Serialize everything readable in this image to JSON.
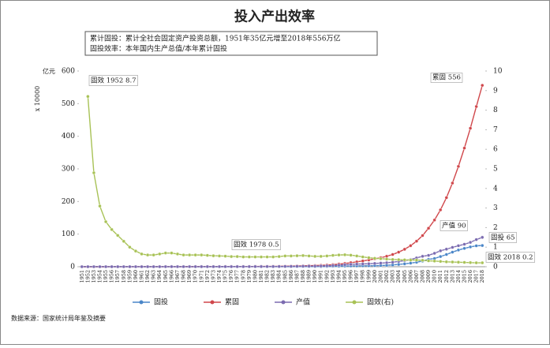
{
  "chart_data": {
    "type": "line",
    "title": "投入产出效率",
    "notes": [
      "累计固投：累计全社会固定资产投资总额，1951年35亿元增至2018年556万亿",
      "固投效率：本年国内生产总值/本年累计固投"
    ],
    "y_axis_label": "亿元",
    "y_axis_multiplier": "x 10000",
    "source": "数据来源：国家统计局年鉴及摘要",
    "annotations": [
      "固效 1952 8.7",
      "累固 556",
      "产值 90",
      "固投 65",
      "固效 2018 0.2",
      "固效 1978 0.5"
    ],
    "ylim": [
      0,
      600
    ],
    "yticks": [
      0,
      100,
      200,
      300,
      400,
      500,
      600
    ],
    "y2lim": [
      0,
      10
    ],
    "y2ticks": [
      0,
      1,
      2,
      3,
      4,
      5,
      6,
      7,
      8,
      9,
      10
    ],
    "grid": false,
    "legend": "bottom",
    "categories": [
      "1951",
      "1952",
      "1953",
      "1954",
      "1955",
      "1956",
      "1957",
      "1958",
      "1959",
      "1960",
      "1961",
      "1962",
      "1963",
      "1964",
      "1965",
      "1966",
      "1967",
      "1968",
      "1969",
      "1970",
      "1971",
      "1972",
      "1973",
      "1974",
      "1975",
      "1976",
      "1977",
      "1978",
      "1979",
      "1980",
      "1981",
      "1982",
      "1983",
      "1984",
      "1985",
      "1986",
      "1987",
      "1988",
      "1989",
      "1990",
      "1991",
      "1992",
      "1993",
      "1994",
      "1995",
      "1996",
      "1997",
      "1998",
      "1999",
      "2000",
      "2001",
      "2002",
      "2003",
      "2004",
      "2005",
      "2006",
      "2007",
      "2008",
      "2009",
      "2010",
      "2011",
      "2012",
      "2013",
      "2014",
      "2015",
      "2016",
      "2017",
      "2018"
    ],
    "series": [
      {
        "name": "固投",
        "color": "#4a86c8",
        "values": [
          0.0,
          0.0,
          0.01,
          0.01,
          0.01,
          0.01,
          0.01,
          0.03,
          0.03,
          0.04,
          0.01,
          0.01,
          0.01,
          0.02,
          0.02,
          0.02,
          0.02,
          0.02,
          0.02,
          0.03,
          0.03,
          0.03,
          0.03,
          0.03,
          0.03,
          0.04,
          0.04,
          0.04,
          0.07,
          0.09,
          0.1,
          0.12,
          0.14,
          0.18,
          0.25,
          0.31,
          0.38,
          0.48,
          0.44,
          0.45,
          0.56,
          0.81,
          1.31,
          1.71,
          2.0,
          2.3,
          2.49,
          2.84,
          2.99,
          3.29,
          3.72,
          4.35,
          5.56,
          7.05,
          8.88,
          11.0,
          13.73,
          17.28,
          22.46,
          25.17,
          31.15,
          37.47,
          44.63,
          51.2,
          56.2,
          60.65,
          64.12,
          65
        ]
      },
      {
        "name": "累固",
        "color": "#d0474b",
        "values": [
          0.0,
          0.0,
          0.01,
          0.02,
          0.03,
          0.04,
          0.05,
          0.08,
          0.11,
          0.15,
          0.16,
          0.17,
          0.18,
          0.2,
          0.22,
          0.24,
          0.26,
          0.28,
          0.3,
          0.33,
          0.36,
          0.39,
          0.42,
          0.45,
          0.48,
          0.52,
          0.56,
          0.6,
          0.72,
          0.81,
          0.91,
          1.03,
          1.17,
          1.35,
          1.6,
          1.91,
          2.29,
          2.77,
          3.21,
          3.66,
          4.22,
          5.03,
          6.34,
          8.05,
          10.05,
          12.35,
          14.84,
          17.68,
          20.67,
          23.96,
          27.68,
          32.03,
          37.59,
          44.64,
          53.52,
          64.52,
          78.25,
          95.53,
          117.99,
          143.16,
          174.31,
          211.78,
          256.41,
          307.61,
          363.81,
          424.46,
          491,
          556
        ]
      },
      {
        "name": "产值",
        "color": "#7b6bb0",
        "values": [
          0.05,
          0.07,
          0.08,
          0.09,
          0.09,
          0.1,
          0.11,
          0.13,
          0.14,
          0.15,
          0.12,
          0.11,
          0.12,
          0.14,
          0.17,
          0.19,
          0.18,
          0.17,
          0.19,
          0.23,
          0.24,
          0.25,
          0.27,
          0.28,
          0.3,
          0.29,
          0.32,
          0.37,
          0.41,
          0.46,
          0.49,
          0.54,
          0.6,
          0.72,
          0.9,
          1.03,
          1.21,
          1.51,
          1.71,
          1.87,
          2.2,
          2.72,
          3.57,
          4.86,
          6.13,
          7.18,
          7.97,
          8.52,
          9.06,
          10.03,
          11.09,
          12.17,
          13.74,
          16.18,
          18.73,
          21.94,
          27.01,
          31.92,
          34.85,
          41.21,
          48.79,
          53.86,
          59.3,
          64.36,
          68.89,
          74.64,
          83.2,
          90
        ]
      },
      {
        "name": "固效(右)",
        "color": "#a8c256",
        "axis": "y2",
        "values": [
          null,
          8.7,
          4.8,
          3.1,
          2.3,
          1.9,
          1.6,
          1.3,
          1.0,
          0.8,
          0.65,
          0.6,
          0.6,
          0.65,
          0.7,
          0.7,
          0.65,
          0.6,
          0.6,
          0.6,
          0.6,
          0.58,
          0.56,
          0.55,
          0.54,
          0.52,
          0.52,
          0.5,
          0.5,
          0.5,
          0.5,
          0.5,
          0.5,
          0.52,
          0.55,
          0.55,
          0.56,
          0.57,
          0.55,
          0.53,
          0.53,
          0.55,
          0.58,
          0.6,
          0.61,
          0.59,
          0.55,
          0.5,
          0.46,
          0.43,
          0.41,
          0.39,
          0.37,
          0.36,
          0.35,
          0.34,
          0.34,
          0.33,
          0.3,
          0.29,
          0.27,
          0.25,
          0.24,
          0.23,
          0.22,
          0.21,
          0.2,
          0.2
        ]
      }
    ]
  }
}
